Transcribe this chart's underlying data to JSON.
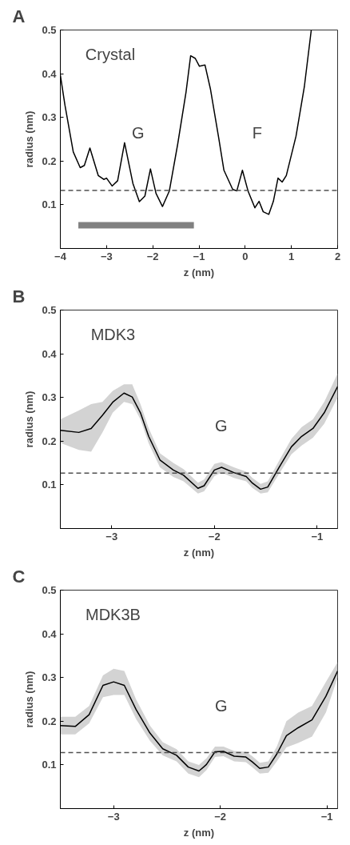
{
  "chart_data": [
    {
      "type": "line",
      "title": "A",
      "xlabel": "z (nm)",
      "ylabel": "radius (nm)",
      "xlim": [
        -4,
        2
      ],
      "ylim": [
        0,
        0.5
      ],
      "xticks": [
        -4,
        -3,
        -2,
        -1,
        0,
        1,
        2
      ],
      "yticks": [
        0.1,
        0.2,
        0.3,
        0.4,
        0.5
      ],
      "grid": false,
      "annotations": [
        "Crystal",
        "G",
        "F"
      ],
      "ref_lines": [
        {
          "axis": "y",
          "value": 0.133,
          "color": "#505050",
          "line_style": "dashed"
        }
      ],
      "series": [
        {
          "color": "#000000",
          "x": [
            -4,
            -3.9,
            -3.72,
            -3.57,
            -3.48,
            -3.36,
            -3.18,
            -3.06,
            -3.0,
            -2.88,
            -2.76,
            -2.61,
            -2.43,
            -2.29,
            -2.17,
            -2.05,
            -1.93,
            -1.79,
            -1.64,
            -1.46,
            -1.28,
            -1.18,
            -1.08,
            -0.99,
            -0.87,
            -0.75,
            -0.57,
            -0.46,
            -0.27,
            -0.18,
            -0.06,
            0.06,
            0.21,
            0.3,
            0.39,
            0.51,
            0.61,
            0.71,
            0.8,
            0.89,
            1.1,
            1.28,
            1.43
          ],
          "values": [
            0.397,
            0.328,
            0.221,
            0.185,
            0.19,
            0.23,
            0.167,
            0.158,
            0.161,
            0.143,
            0.155,
            0.242,
            0.149,
            0.107,
            0.12,
            0.182,
            0.126,
            0.096,
            0.132,
            0.239,
            0.358,
            0.441,
            0.435,
            0.417,
            0.42,
            0.364,
            0.251,
            0.179,
            0.135,
            0.132,
            0.179,
            0.132,
            0.093,
            0.108,
            0.084,
            0.078,
            0.108,
            0.161,
            0.152,
            0.167,
            0.257,
            0.37,
            0.5
          ]
        },
        {
          "color": "#808080",
          "x": [
            -3.61,
            -1.11
          ],
          "values": [
            0.053,
            0.053
          ]
        }
      ]
    },
    {
      "type": "line",
      "title": "B",
      "xlabel": "z (nm)",
      "ylabel": "radius (nm)",
      "xlim": [
        -3.5,
        -0.8
      ],
      "ylim": [
        0,
        0.5
      ],
      "xticks": [
        -3,
        -2,
        -1
      ],
      "yticks": [
        0.1,
        0.2,
        0.3,
        0.4,
        0.5
      ],
      "grid": false,
      "annotations": [
        "MDK3",
        "G"
      ],
      "ref_lines": [
        {
          "axis": "y",
          "value": 0.127,
          "color": "#505050",
          "line_style": "dashed"
        }
      ],
      "series": [
        {
          "color": "#000000",
          "x": [
            -3.5,
            -3.32,
            -3.2,
            -3.09,
            -2.99,
            -2.88,
            -2.8,
            -2.72,
            -2.64,
            -2.53,
            -2.4,
            -2.3,
            -2.16,
            -2.1,
            -2.0,
            -1.93,
            -1.81,
            -1.69,
            -1.63,
            -1.55,
            -1.48,
            -1.37,
            -1.25,
            -1.15,
            -1.04,
            -0.93,
            -0.8
          ],
          "values": [
            0.225,
            0.22,
            0.229,
            0.259,
            0.289,
            0.31,
            0.301,
            0.265,
            0.211,
            0.157,
            0.134,
            0.122,
            0.092,
            0.098,
            0.134,
            0.14,
            0.128,
            0.119,
            0.104,
            0.09,
            0.095,
            0.14,
            0.187,
            0.211,
            0.229,
            0.265,
            0.325
          ],
          "lower": [
            0.196,
            0.18,
            0.176,
            0.22,
            0.265,
            0.29,
            0.285,
            0.25,
            0.195,
            0.14,
            0.118,
            0.108,
            0.08,
            0.085,
            0.12,
            0.128,
            0.116,
            0.108,
            0.093,
            0.08,
            0.083,
            0.125,
            0.17,
            0.19,
            0.208,
            0.24,
            0.3
          ],
          "upper": [
            0.25,
            0.27,
            0.285,
            0.29,
            0.315,
            0.33,
            0.33,
            0.285,
            0.23,
            0.172,
            0.15,
            0.136,
            0.105,
            0.112,
            0.148,
            0.152,
            0.14,
            0.13,
            0.116,
            0.102,
            0.108,
            0.155,
            0.205,
            0.232,
            0.25,
            0.29,
            0.355
          ]
        }
      ]
    },
    {
      "type": "line",
      "title": "C",
      "xlabel": "z (nm)",
      "ylabel": "radius (nm)",
      "xlim": [
        -3.5,
        -0.9
      ],
      "ylim": [
        0,
        0.5
      ],
      "xticks": [
        -3,
        -2,
        -1
      ],
      "yticks": [
        0.1,
        0.2,
        0.3,
        0.4,
        0.5
      ],
      "grid": false,
      "annotations": [
        "MDK3B",
        "G"
      ],
      "ref_lines": [
        {
          "axis": "y",
          "value": 0.128,
          "color": "#505050",
          "line_style": "dashed"
        }
      ],
      "series": [
        {
          "color": "#000000",
          "x": [
            -3.5,
            -3.36,
            -3.23,
            -3.1,
            -3.0,
            -2.9,
            -2.79,
            -2.66,
            -2.54,
            -2.41,
            -2.3,
            -2.2,
            -2.13,
            -2.05,
            -1.97,
            -1.87,
            -1.76,
            -1.7,
            -1.63,
            -1.55,
            -1.47,
            -1.38,
            -1.27,
            -1.14,
            -1.01,
            -0.9
          ],
          "values": [
            0.19,
            0.188,
            0.215,
            0.282,
            0.29,
            0.282,
            0.227,
            0.173,
            0.137,
            0.122,
            0.095,
            0.086,
            0.101,
            0.13,
            0.131,
            0.12,
            0.118,
            0.107,
            0.092,
            0.095,
            0.125,
            0.167,
            0.185,
            0.203,
            0.257,
            0.315
          ],
          "lower": [
            0.17,
            0.17,
            0.195,
            0.255,
            0.26,
            0.26,
            0.205,
            0.155,
            0.122,
            0.108,
            0.08,
            0.072,
            0.088,
            0.118,
            0.12,
            0.108,
            0.106,
            0.095,
            0.08,
            0.082,
            0.108,
            0.14,
            0.15,
            0.165,
            0.22,
            0.3
          ],
          "upper": [
            0.21,
            0.21,
            0.235,
            0.305,
            0.32,
            0.315,
            0.25,
            0.19,
            0.152,
            0.136,
            0.108,
            0.1,
            0.115,
            0.142,
            0.142,
            0.132,
            0.13,
            0.12,
            0.105,
            0.108,
            0.142,
            0.2,
            0.22,
            0.235,
            0.29,
            0.335
          ]
        }
      ]
    }
  ]
}
